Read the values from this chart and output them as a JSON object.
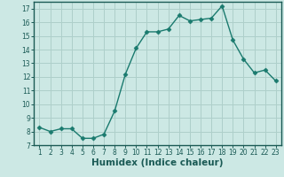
{
  "x": [
    1,
    2,
    3,
    4,
    5,
    6,
    7,
    8,
    9,
    10,
    11,
    12,
    13,
    14,
    15,
    16,
    17,
    18,
    19,
    20,
    21,
    22,
    23
  ],
  "y": [
    8.3,
    8.0,
    8.2,
    8.2,
    7.5,
    7.5,
    7.8,
    9.5,
    12.2,
    14.1,
    15.3,
    15.3,
    15.5,
    16.5,
    16.1,
    16.2,
    16.3,
    17.2,
    14.7,
    13.3,
    12.3,
    12.5,
    11.7
  ],
  "line_color": "#1a7a6e",
  "marker": "D",
  "marker_size": 2.5,
  "bg_color": "#cce8e4",
  "grid_color": "#aecfca",
  "xlabel": "Humidex (Indice chaleur)",
  "ylim": [
    7,
    17.5
  ],
  "xlim": [
    0.5,
    23.5
  ],
  "yticks": [
    7,
    8,
    9,
    10,
    11,
    12,
    13,
    14,
    15,
    16,
    17
  ],
  "xticks": [
    1,
    2,
    3,
    4,
    5,
    6,
    7,
    8,
    9,
    10,
    11,
    12,
    13,
    14,
    15,
    16,
    17,
    18,
    19,
    20,
    21,
    22,
    23
  ],
  "tick_fontsize": 5.5,
  "xlabel_fontsize": 7.5,
  "axis_color": "#1a5a55",
  "line_width": 1.0
}
